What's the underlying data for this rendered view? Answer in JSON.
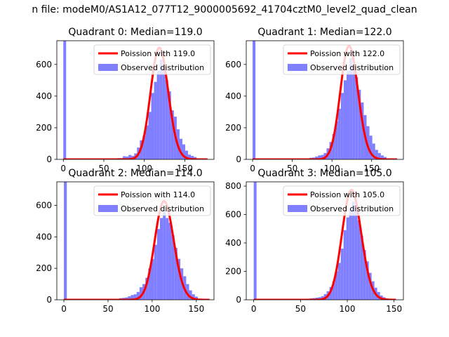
{
  "figure_title": "n file: modeM0/AS1A12_077T12_9000005692_41704cztM0_level2_quad_clean",
  "chart_data": [
    {
      "type": "histogram",
      "title": "Quadrant 0: Median=119.0",
      "xlim": [
        -8,
        186
      ],
      "ylim": [
        0,
        750
      ],
      "xticks": [
        0,
        50,
        100,
        150
      ],
      "yticks": [
        0,
        200,
        400,
        600
      ],
      "legend_position": "upper right",
      "legend": [
        "Poission with 119.0",
        "Observed distribution"
      ],
      "median": 119.0,
      "curve_x_range": [
        0,
        178
      ],
      "histogram": {
        "bin_width": 3.5,
        "bins": [
          {
            "x": 0,
            "y": 750
          },
          {
            "x": 63,
            "y": 5
          },
          {
            "x": 66.5,
            "y": 8
          },
          {
            "x": 70,
            "y": 8
          },
          {
            "x": 73.5,
            "y": 20
          },
          {
            "x": 77,
            "y": 18
          },
          {
            "x": 80.5,
            "y": 28
          },
          {
            "x": 84,
            "y": 22
          },
          {
            "x": 87.5,
            "y": 38
          },
          {
            "x": 91,
            "y": 75
          },
          {
            "x": 94.5,
            "y": 120
          },
          {
            "x": 98,
            "y": 150
          },
          {
            "x": 101.5,
            "y": 215
          },
          {
            "x": 105,
            "y": 300
          },
          {
            "x": 108.5,
            "y": 420
          },
          {
            "x": 112,
            "y": 490
          },
          {
            "x": 115.5,
            "y": 560
          },
          {
            "x": 119,
            "y": 630
          },
          {
            "x": 122.5,
            "y": 600
          },
          {
            "x": 126,
            "y": 500
          },
          {
            "x": 129.5,
            "y": 430
          },
          {
            "x": 133,
            "y": 310
          },
          {
            "x": 136.5,
            "y": 270
          },
          {
            "x": 140,
            "y": 190
          },
          {
            "x": 143.5,
            "y": 130
          },
          {
            "x": 147,
            "y": 95
          },
          {
            "x": 150.5,
            "y": 55
          },
          {
            "x": 154,
            "y": 30
          },
          {
            "x": 157.5,
            "y": 22
          },
          {
            "x": 161,
            "y": 15
          }
        ]
      }
    },
    {
      "type": "histogram",
      "title": "Quadrant 1: Median=122.0",
      "xlim": [
        -8,
        190
      ],
      "ylim": [
        0,
        750
      ],
      "xticks": [
        0,
        50,
        100,
        150
      ],
      "yticks": [
        0,
        200,
        400,
        600
      ],
      "legend_position": "upper right",
      "legend": [
        "Poission with 122.0",
        "Observed distribution"
      ],
      "median": 122.0,
      "curve_x_range": [
        0,
        182
      ],
      "histogram": {
        "bin_width": 3.6,
        "bins": [
          {
            "x": 0,
            "y": 750
          },
          {
            "x": 68,
            "y": 5
          },
          {
            "x": 71.6,
            "y": 10
          },
          {
            "x": 75.2,
            "y": 12
          },
          {
            "x": 78.8,
            "y": 18
          },
          {
            "x": 82.4,
            "y": 25
          },
          {
            "x": 86,
            "y": 28
          },
          {
            "x": 89.6,
            "y": 40
          },
          {
            "x": 93.2,
            "y": 70
          },
          {
            "x": 96.8,
            "y": 110
          },
          {
            "x": 100.4,
            "y": 160
          },
          {
            "x": 104,
            "y": 240
          },
          {
            "x": 107.6,
            "y": 320
          },
          {
            "x": 111.2,
            "y": 420
          },
          {
            "x": 114.8,
            "y": 500
          },
          {
            "x": 118.4,
            "y": 560
          },
          {
            "x": 122,
            "y": 640
          },
          {
            "x": 125.6,
            "y": 590
          },
          {
            "x": 129.2,
            "y": 520
          },
          {
            "x": 132.8,
            "y": 440
          },
          {
            "x": 136.4,
            "y": 360
          },
          {
            "x": 140,
            "y": 280
          },
          {
            "x": 143.6,
            "y": 210
          },
          {
            "x": 147.2,
            "y": 150
          },
          {
            "x": 150.8,
            "y": 100
          },
          {
            "x": 154.4,
            "y": 60
          },
          {
            "x": 158,
            "y": 40
          },
          {
            "x": 161.6,
            "y": 25
          },
          {
            "x": 165.2,
            "y": 15
          }
        ]
      }
    },
    {
      "type": "histogram",
      "title": "Quadrant 2: Median=114.0",
      "xlim": [
        -8,
        170
      ],
      "ylim": [
        0,
        750
      ],
      "xticks": [
        0,
        50,
        100,
        150
      ],
      "yticks": [
        0,
        200,
        400,
        600
      ],
      "legend_position": "upper right",
      "legend": [
        "Poission with 114.0",
        "Observed distribution"
      ],
      "median": 114.0,
      "curve_x_range": [
        0,
        165
      ],
      "histogram": {
        "bin_width": 3.3,
        "bins": [
          {
            "x": 0,
            "y": 750
          },
          {
            "x": 56,
            "y": 3
          },
          {
            "x": 59.3,
            "y": 6
          },
          {
            "x": 62.6,
            "y": 10
          },
          {
            "x": 65.9,
            "y": 12
          },
          {
            "x": 69.2,
            "y": 15
          },
          {
            "x": 72.5,
            "y": 22
          },
          {
            "x": 75.8,
            "y": 30
          },
          {
            "x": 79.1,
            "y": 35
          },
          {
            "x": 82.4,
            "y": 50
          },
          {
            "x": 85.7,
            "y": 80
          },
          {
            "x": 89,
            "y": 100
          },
          {
            "x": 92.3,
            "y": 140
          },
          {
            "x": 95.6,
            "y": 200
          },
          {
            "x": 98.9,
            "y": 260
          },
          {
            "x": 102.2,
            "y": 350
          },
          {
            "x": 105.5,
            "y": 450
          },
          {
            "x": 108.8,
            "y": 520
          },
          {
            "x": 112.1,
            "y": 560
          },
          {
            "x": 115.4,
            "y": 520
          },
          {
            "x": 118.7,
            "y": 490
          },
          {
            "x": 122,
            "y": 410
          },
          {
            "x": 125.3,
            "y": 330
          },
          {
            "x": 128.6,
            "y": 260
          },
          {
            "x": 131.9,
            "y": 200
          },
          {
            "x": 135.2,
            "y": 150
          },
          {
            "x": 138.5,
            "y": 100
          },
          {
            "x": 141.8,
            "y": 60
          },
          {
            "x": 145.1,
            "y": 35
          },
          {
            "x": 148.4,
            "y": 20
          }
        ]
      }
    },
    {
      "type": "histogram",
      "title": "Quadrant 3: Median=105.0",
      "xlim": [
        -8,
        160
      ],
      "ylim": [
        0,
        830
      ],
      "xticks": [
        0,
        50,
        100,
        150
      ],
      "yticks": [
        0,
        200,
        400,
        600,
        800
      ],
      "legend_position": "upper right",
      "legend": [
        "Poission with 105.0",
        "Observed distribution"
      ],
      "median": 105.0,
      "curve_x_range": [
        0,
        152
      ],
      "histogram": {
        "bin_width": 3.0,
        "bins": [
          {
            "x": 0,
            "y": 830
          },
          {
            "x": 51,
            "y": 3
          },
          {
            "x": 54,
            "y": 5
          },
          {
            "x": 57,
            "y": 8
          },
          {
            "x": 60,
            "y": 10
          },
          {
            "x": 63,
            "y": 12
          },
          {
            "x": 66,
            "y": 15
          },
          {
            "x": 69,
            "y": 18
          },
          {
            "x": 72,
            "y": 25
          },
          {
            "x": 75,
            "y": 40
          },
          {
            "x": 78,
            "y": 60
          },
          {
            "x": 81,
            "y": 90
          },
          {
            "x": 84,
            "y": 130
          },
          {
            "x": 87,
            "y": 200
          },
          {
            "x": 90,
            "y": 260
          },
          {
            "x": 93,
            "y": 360
          },
          {
            "x": 96,
            "y": 490
          },
          {
            "x": 99,
            "y": 580
          },
          {
            "x": 102,
            "y": 640
          },
          {
            "x": 105,
            "y": 690
          },
          {
            "x": 108,
            "y": 620
          },
          {
            "x": 111,
            "y": 560
          },
          {
            "x": 114,
            "y": 450
          },
          {
            "x": 117,
            "y": 350
          },
          {
            "x": 120,
            "y": 270
          },
          {
            "x": 123,
            "y": 190
          },
          {
            "x": 126,
            "y": 130
          },
          {
            "x": 129,
            "y": 85
          },
          {
            "x": 132,
            "y": 55
          },
          {
            "x": 135,
            "y": 30
          },
          {
            "x": 138,
            "y": 18
          },
          {
            "x": 141,
            "y": 10
          }
        ]
      }
    }
  ],
  "colors": {
    "curve": "#ff0000",
    "histogram": "#7f7fff",
    "axes": "#000000",
    "legend_border": "#cccccc"
  }
}
